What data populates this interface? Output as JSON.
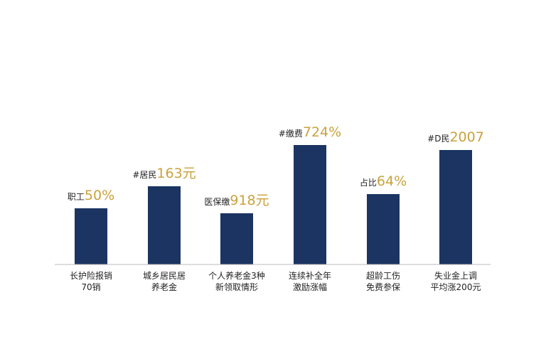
{
  "chart_data": {
    "type": "bar",
    "categories": [
      [
        "长护险报销",
        "70销"
      ],
      [
        "城乡居民居",
        "养老金"
      ],
      [
        "个人养老金3种",
        "新领取情形"
      ],
      [
        "连续补全年",
        "激励涨幅"
      ],
      [
        "超龄工伤",
        "免费参保"
      ],
      [
        "失业金上调",
        "平均涨200元"
      ]
    ],
    "annotations": [
      {
        "prefix": "职工",
        "text": "50%"
      },
      {
        "prefix": "#居民",
        "text": "163元"
      },
      {
        "prefix": "医保缴",
        "text": "918元"
      },
      {
        "prefix": "#缴费",
        "text": "724%"
      },
      {
        "prefix": "占比",
        "text": "64%"
      },
      {
        "prefix": "#D民",
        "text": "2007"
      }
    ],
    "values": [
      79,
      110,
      72,
      168,
      99,
      161
    ],
    "ylim": [
      0,
      200
    ],
    "color": "#1b3462",
    "highlight_color": "#c9a23c"
  }
}
